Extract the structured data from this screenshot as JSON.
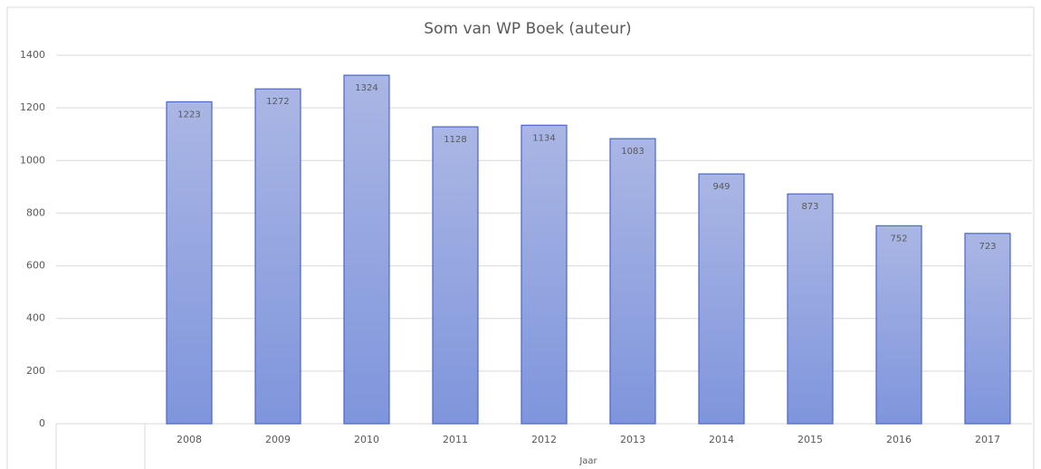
{
  "chart_data": {
    "type": "bar",
    "title": "Som van WP Boek (auteur)",
    "x_label": "Jaar",
    "categories": [
      null,
      "2008",
      "2009",
      "2010",
      "2011",
      "2012",
      "2013",
      "2014",
      "2015",
      "2016",
      "2017"
    ],
    "values": [
      null,
      1223,
      1272,
      1324,
      1128,
      1134,
      1083,
      949,
      873,
      752,
      723
    ],
    "color": "#8ea0de",
    "ylim": [
      0,
      1400
    ],
    "yticks": [
      0,
      200,
      400,
      600,
      800,
      1000,
      1200,
      1400
    ],
    "grid": true
  }
}
